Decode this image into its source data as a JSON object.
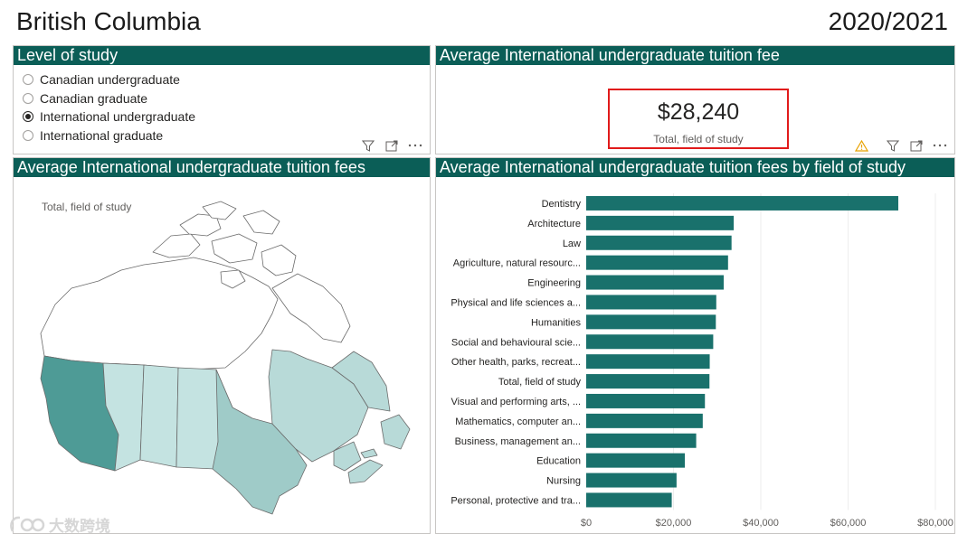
{
  "header": {
    "region": "British Columbia",
    "year": "2020/2021"
  },
  "level_panel": {
    "title": "Level of study",
    "options": [
      {
        "label": "Canadian undergraduate",
        "selected": false
      },
      {
        "label": "Canadian graduate",
        "selected": false
      },
      {
        "label": "International undergraduate",
        "selected": true
      },
      {
        "label": "International graduate",
        "selected": false
      }
    ]
  },
  "card_panel": {
    "title": "Average International undergraduate tuition fee",
    "value": "$28,240",
    "label": "Total, field of study"
  },
  "map_panel": {
    "title": "Average International undergraduate tuition fees",
    "subtitle": "Total, field of study",
    "colors": {
      "bc": "#4e9b96",
      "prairies": "#c4e3e1",
      "ontario": "#9fcbc8",
      "quebec": "#b8dad8",
      "atlantic": "#b8dad8",
      "north": "#ffffff"
    }
  },
  "bar_panel": {
    "title": "Average International undergraduate tuition fees by field of study"
  },
  "chart_data": {
    "type": "bar",
    "orientation": "horizontal",
    "categories": [
      "Dentistry",
      "Architecture",
      "Law",
      "Agriculture, natural resourc...",
      "Engineering",
      "Physical and life sciences a...",
      "Humanities",
      "Social and behavioural scie...",
      "Other health, parks, recreat...",
      "Total, field of study",
      "Visual and performing arts, ...",
      "Mathematics, computer an...",
      "Business, management an...",
      "Education",
      "Nursing",
      "Personal, protective and tra..."
    ],
    "values": [
      71500,
      33800,
      33300,
      32500,
      31500,
      29800,
      29700,
      29100,
      28300,
      28240,
      27200,
      26700,
      25200,
      22600,
      20700,
      19600
    ],
    "xlim": [
      0,
      80000
    ],
    "x_ticks": [
      0,
      20000,
      40000,
      60000,
      80000
    ],
    "x_tick_labels": [
      "$0",
      "$20,000",
      "$40,000",
      "$60,000",
      "$80,000"
    ],
    "grid": true,
    "bar_color": "#19716c"
  },
  "watermark": {
    "text": "大数跨境"
  },
  "icons": [
    "filter-icon",
    "focus-mode-icon",
    "more-options-icon",
    "warning-icon"
  ]
}
